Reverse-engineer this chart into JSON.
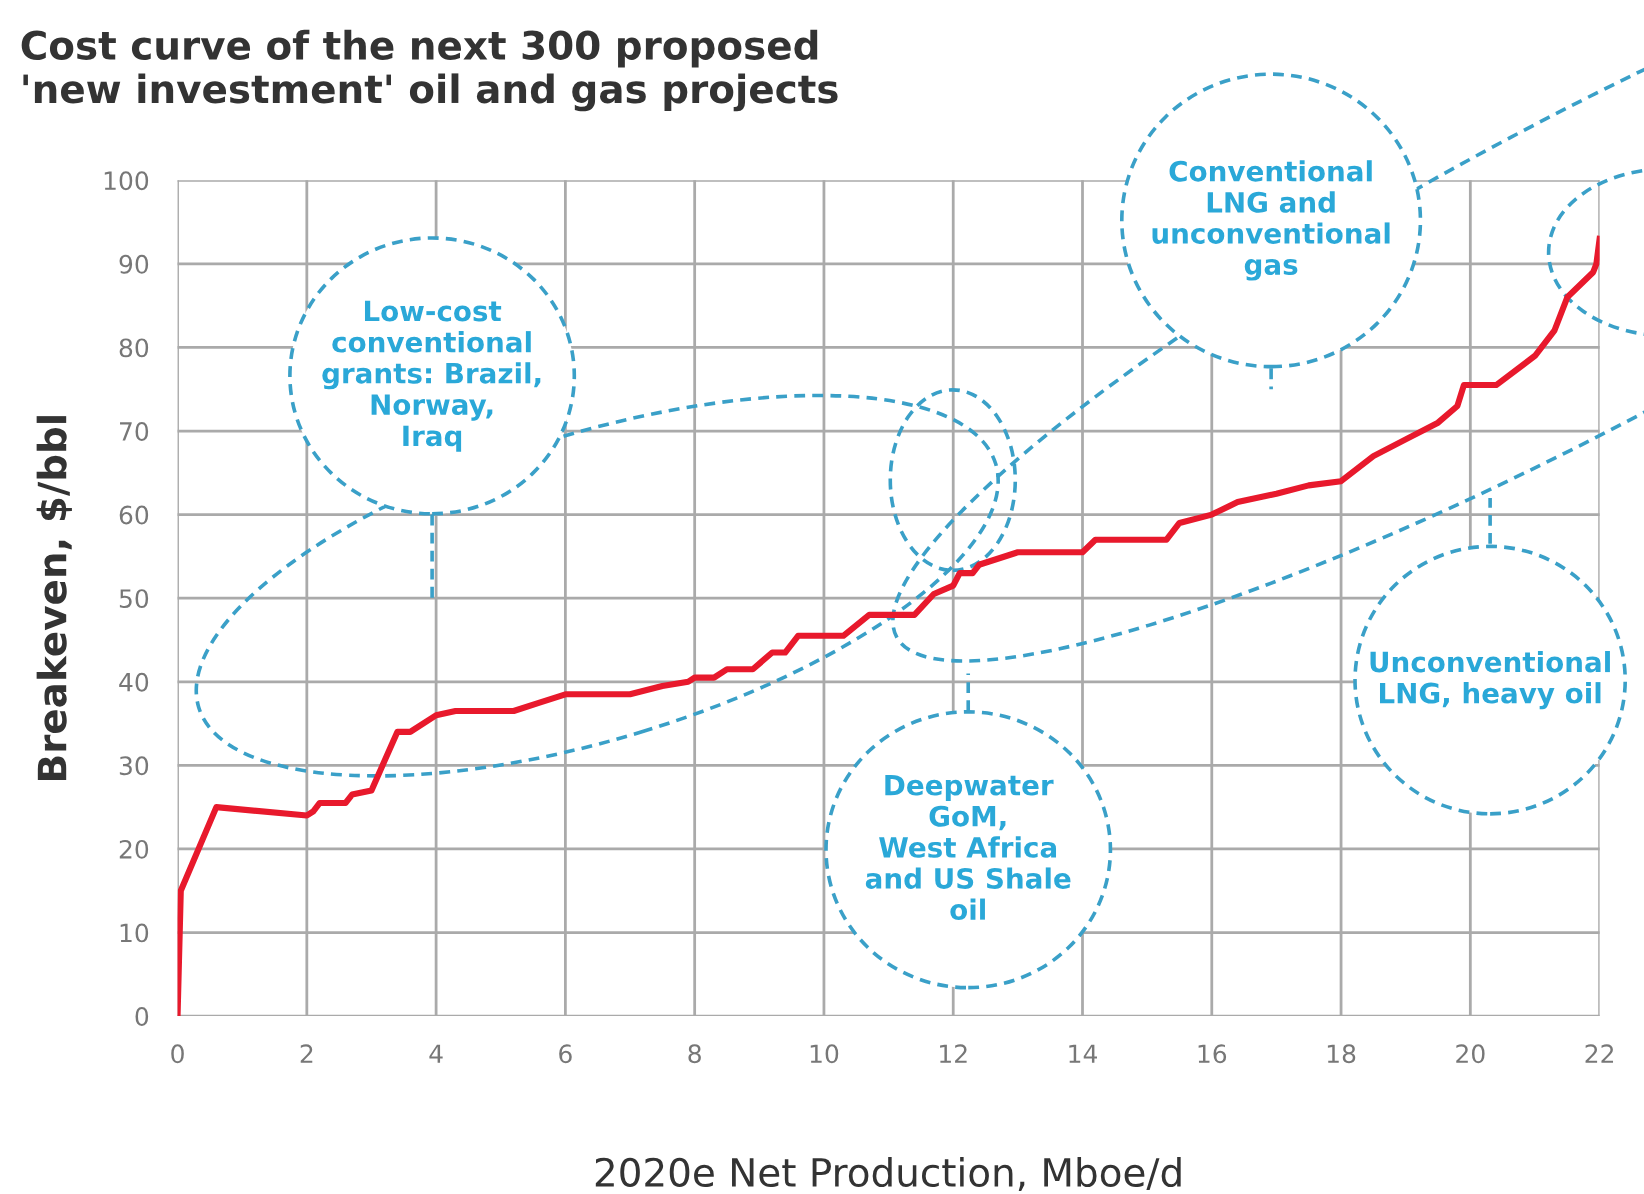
{
  "chart_data": {
    "type": "line",
    "title": "Cost curve of the next 300 proposed\n'new investment' oil and gas projects",
    "xlabel": "2020e Net Production, Mboe/d",
    "ylabel": "Breakeven, $/bbl",
    "series": [
      {
        "color": "#e8192c",
        "x": [
          0,
          0.05,
          0.6,
          2.0,
          2.1,
          2.2,
          2.6,
          2.7,
          3.0,
          3.4,
          3.6,
          4.0,
          4.3,
          5.2,
          5.6,
          6.0,
          7.0,
          7.5,
          7.9,
          8.0,
          8.3,
          8.5,
          8.9,
          9.2,
          9.4,
          9.6,
          10.3,
          10.7,
          11.4,
          11.7,
          12.0,
          12.1,
          12.3,
          12.4,
          13.0,
          14.0,
          14.2,
          15.3,
          15.5,
          16.0,
          16.4,
          17.0,
          17.5,
          18.0,
          18.5,
          19.0,
          19.5,
          19.8,
          19.9,
          20.4,
          21.0,
          21.3,
          21.5,
          21.7,
          21.9,
          21.95,
          22.0
        ],
        "values": [
          0,
          15,
          25,
          24,
          24.5,
          25.5,
          25.5,
          26.5,
          27,
          34,
          34,
          36,
          36.5,
          36.5,
          37.5,
          38.5,
          38.5,
          39.5,
          40,
          40.5,
          40.5,
          41.5,
          41.5,
          43.5,
          43.5,
          45.5,
          45.5,
          48,
          48,
          50.5,
          51.5,
          53,
          53,
          54,
          55.5,
          55.5,
          57,
          57,
          59,
          60,
          61.5,
          62.5,
          63.5,
          64,
          67,
          69,
          71,
          73,
          75.5,
          75.5,
          79,
          82,
          86,
          87.5,
          89,
          90,
          93
        ]
      }
    ],
    "xlim": [
      0,
      22
    ],
    "xticks": [
      0,
      2,
      4,
      6,
      8,
      10,
      12,
      14,
      16,
      18,
      20,
      22
    ],
    "ylim": [
      0,
      100
    ],
    "yticks": [
      0,
      10,
      20,
      30,
      40,
      50,
      60,
      70,
      80,
      90,
      100
    ],
    "grid": true,
    "line_style": "solid",
    "marker": "none",
    "annotations": [
      "Low-cost\nconventional\ngrants: Brazil,\nNorway,\nIraq",
      "Deepwater\nGoM,\nWest Africa\nand US Shale\noil",
      "Conventional\nLNG and\nunconventional\ngas",
      "Unconventional\nLNG, heavy oil"
    ]
  }
}
